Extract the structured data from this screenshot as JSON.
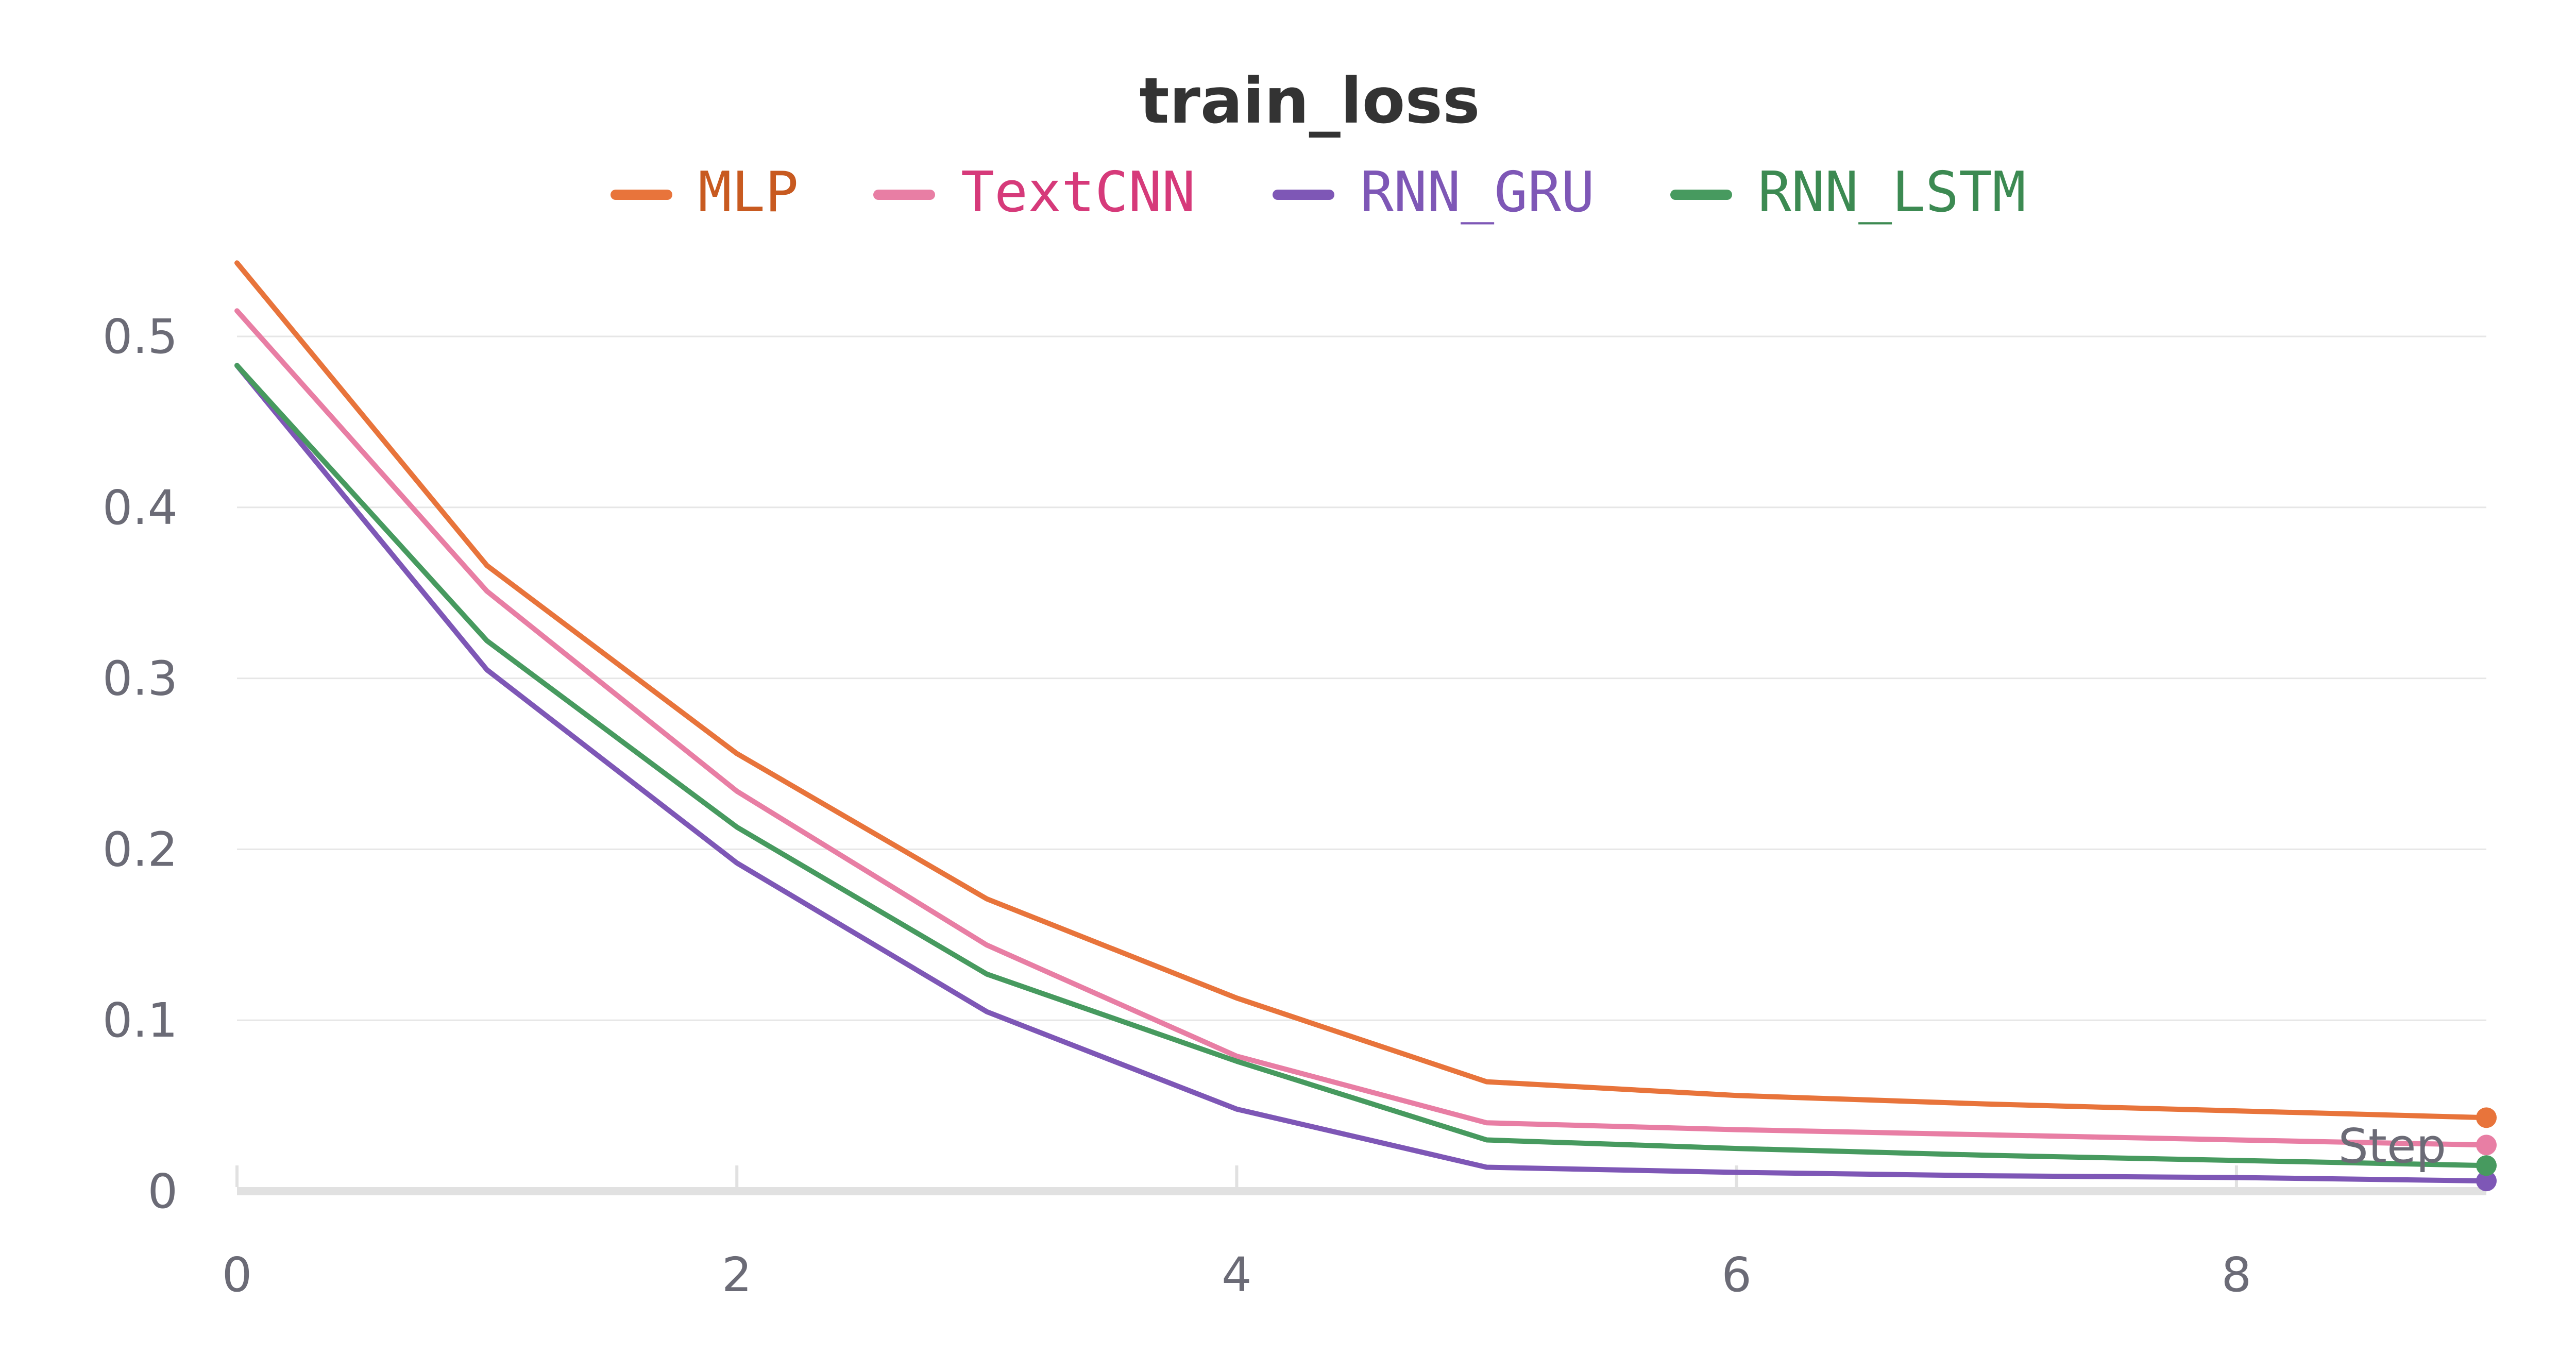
{
  "chart_data": {
    "type": "line",
    "title": "train_loss",
    "xlabel": "Step",
    "ylabel": "",
    "xlim": [
      0,
      9
    ],
    "ylim": [
      0,
      0.55
    ],
    "x": [
      0,
      1,
      2,
      3,
      4,
      5,
      6,
      7,
      8,
      9
    ],
    "xticks": [
      "0",
      "2",
      "4",
      "6",
      "8"
    ],
    "yticks": [
      "0",
      "0.1",
      "0.2",
      "0.3",
      "0.4",
      "0.5"
    ],
    "grid": true,
    "legend_position": "top-center",
    "series": [
      {
        "name": "MLP",
        "color": "#e8743b",
        "text_color": "#c85a20",
        "values": [
          0.543,
          0.366,
          0.256,
          0.171,
          0.113,
          0.064,
          0.056,
          0.051,
          0.047,
          0.043
        ]
      },
      {
        "name": "TextCNN",
        "color": "#e87ea4",
        "text_color": "#d63a7a",
        "values": [
          0.515,
          0.351,
          0.234,
          0.144,
          0.079,
          0.04,
          0.036,
          0.033,
          0.03,
          0.027
        ]
      },
      {
        "name": "RNN_GRU",
        "color": "#7e57b6",
        "text_color": "#7e57b6",
        "values": [
          0.483,
          0.305,
          0.192,
          0.105,
          0.048,
          0.014,
          0.011,
          0.009,
          0.008,
          0.006
        ]
      },
      {
        "name": "RNN_LSTM",
        "color": "#479a5f",
        "text_color": "#3c8a52",
        "values": [
          0.483,
          0.322,
          0.213,
          0.127,
          0.076,
          0.03,
          0.025,
          0.021,
          0.018,
          0.015
        ]
      }
    ]
  }
}
